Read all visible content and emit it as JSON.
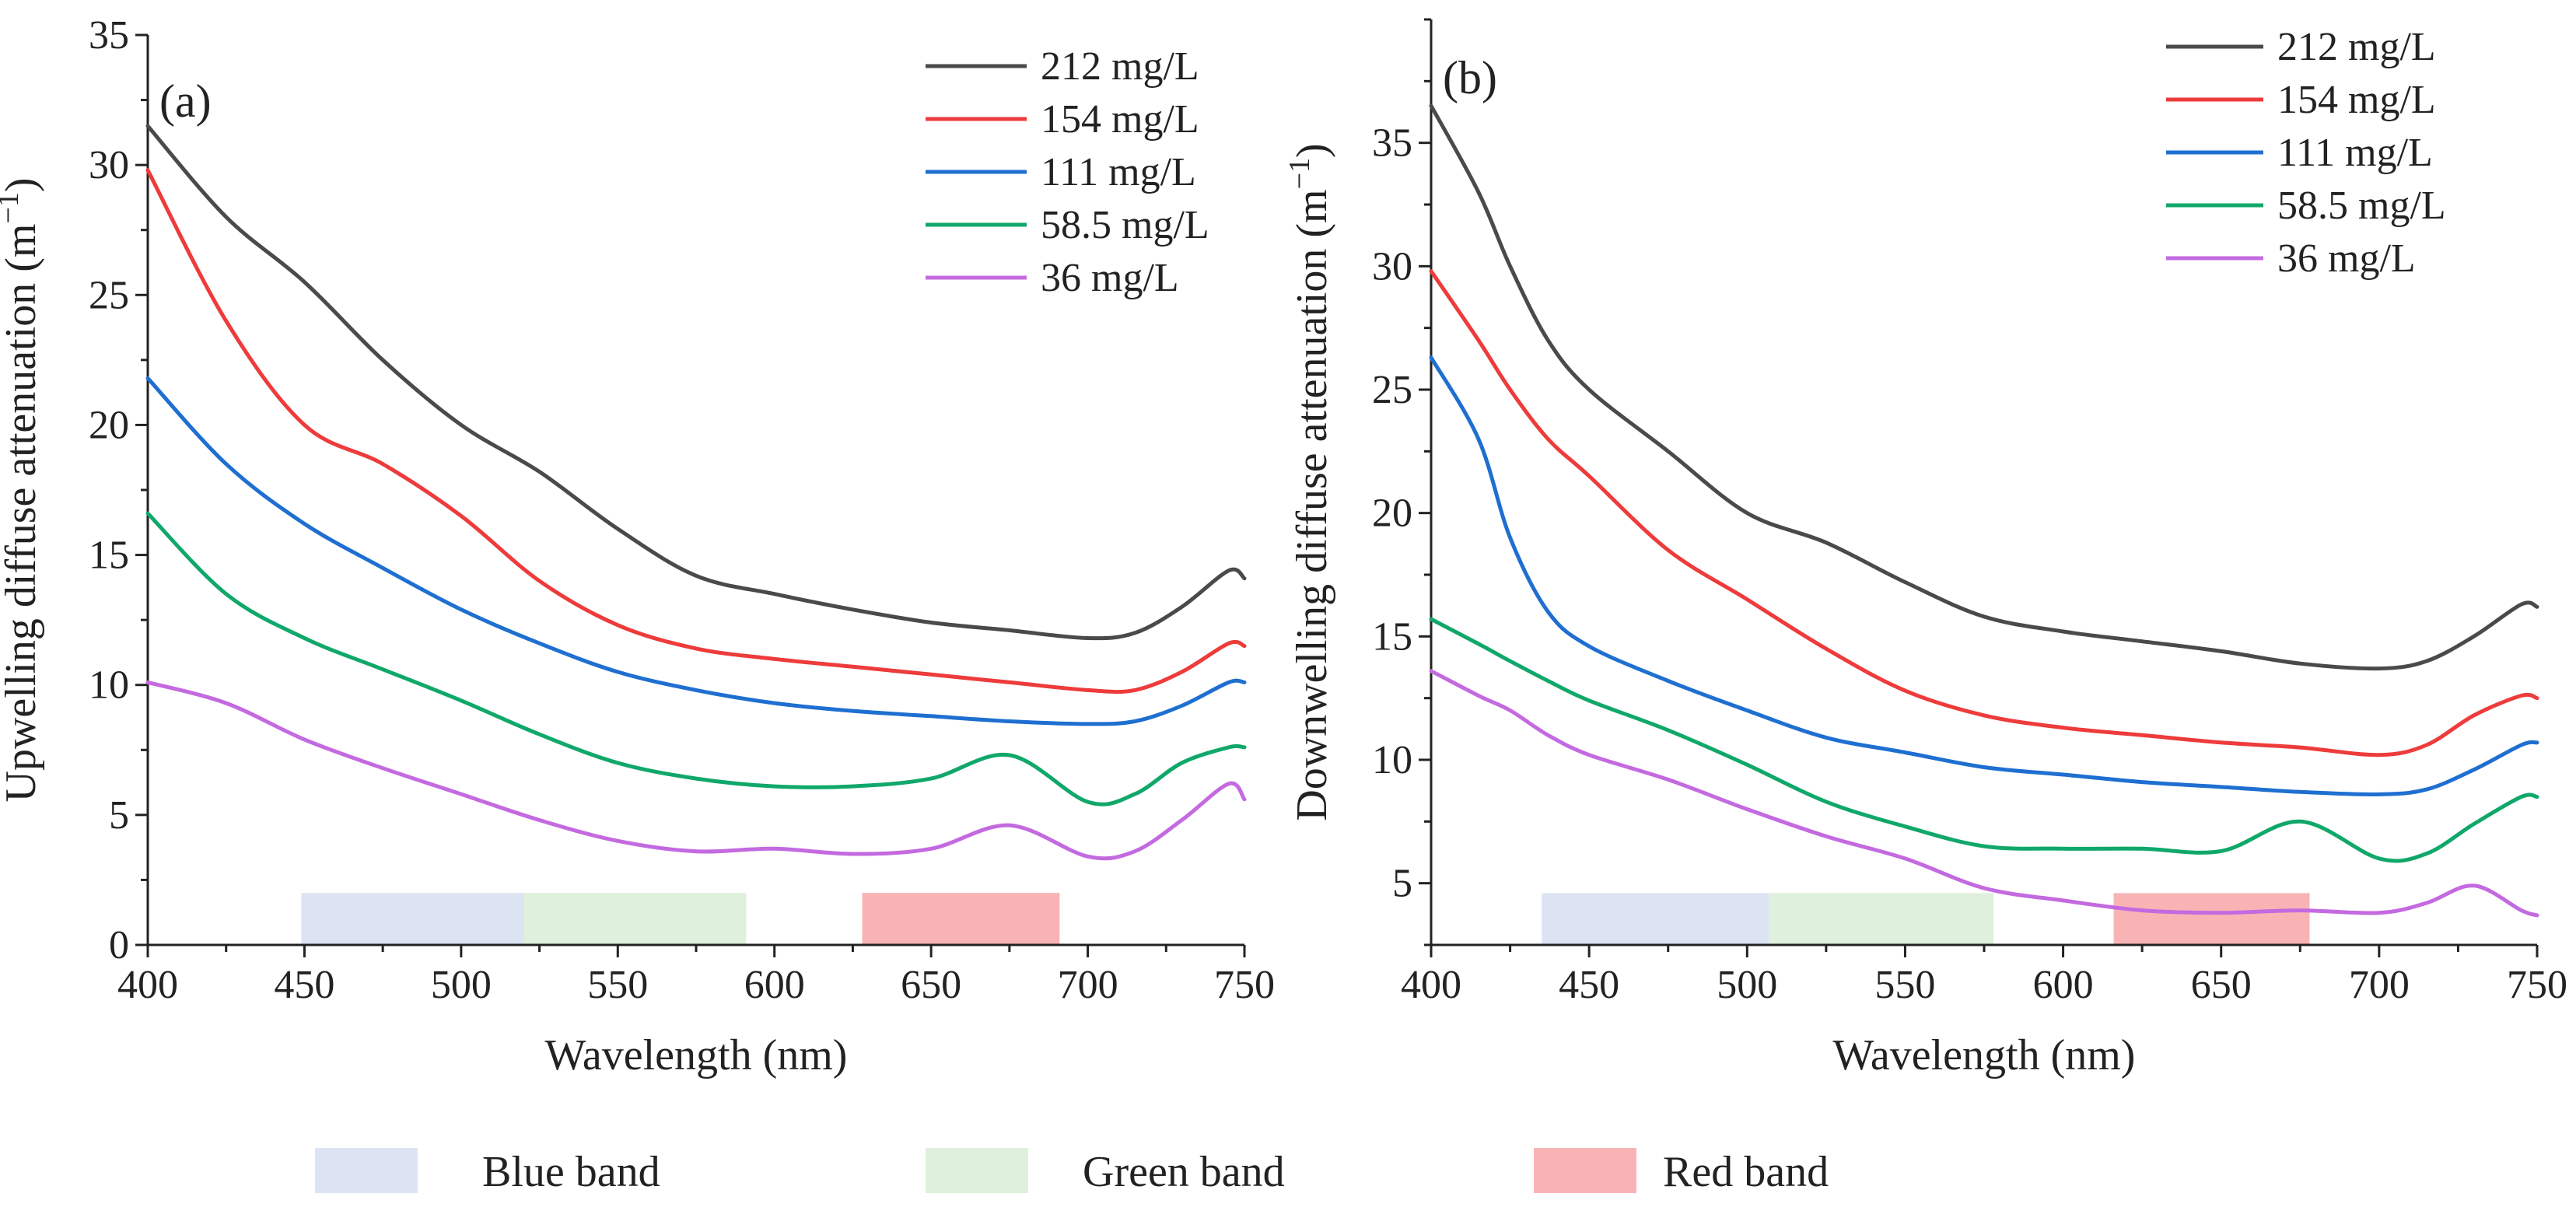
{
  "chart_data": [
    {
      "type": "line",
      "panel_label": "(a)",
      "xlabel": "Wavelength (nm)",
      "ylabel": "Upwelling diffuse attenuation (m",
      "ylabel_sup": "−1",
      "ylabel_close": ")",
      "xlim": [
        400,
        750
      ],
      "ylim": [
        0,
        35
      ],
      "xticks": [
        400,
        450,
        500,
        550,
        600,
        650,
        700,
        750
      ],
      "yticks": [
        0,
        5,
        10,
        15,
        20,
        25,
        30,
        35
      ],
      "x": [
        400,
        425,
        450,
        475,
        500,
        525,
        550,
        575,
        600,
        625,
        650,
        675,
        700,
        715,
        730,
        745,
        750
      ],
      "series": [
        {
          "name": "212 mg/L",
          "color": "#4a4a4a",
          "values": [
            31.5,
            28.0,
            25.5,
            22.5,
            20.0,
            18.2,
            16.0,
            14.2,
            13.5,
            12.9,
            12.4,
            12.1,
            11.8,
            12.0,
            13.0,
            14.4,
            14.1
          ]
        },
        {
          "name": "154 mg/L",
          "color": "#ee3b3b",
          "values": [
            29.8,
            24.0,
            20.0,
            18.5,
            16.5,
            14.0,
            12.3,
            11.4,
            11.0,
            10.7,
            10.4,
            10.1,
            9.8,
            9.8,
            10.5,
            11.6,
            11.5
          ]
        },
        {
          "name": "111 mg/L",
          "color": "#1f6fd1",
          "values": [
            21.8,
            18.5,
            16.2,
            14.5,
            12.9,
            11.6,
            10.5,
            9.8,
            9.3,
            9.0,
            8.8,
            8.6,
            8.5,
            8.6,
            9.2,
            10.1,
            10.1
          ]
        },
        {
          "name": "58.5 mg/L",
          "color": "#10a86a",
          "values": [
            16.6,
            13.5,
            11.8,
            10.6,
            9.4,
            8.1,
            7.0,
            6.4,
            6.1,
            6.1,
            6.4,
            7.3,
            5.5,
            5.8,
            7.0,
            7.6,
            7.6
          ]
        },
        {
          "name": "36 mg/L",
          "color": "#c46ae0",
          "values": [
            10.1,
            9.3,
            7.9,
            6.8,
            5.8,
            4.8,
            4.0,
            3.6,
            3.7,
            3.5,
            3.7,
            4.6,
            3.4,
            3.6,
            4.8,
            6.2,
            5.6
          ]
        }
      ],
      "bands": [
        {
          "name": "Blue band",
          "start": 449,
          "end": 520,
          "ymin": 0,
          "ymax": 2,
          "color": "#dce4f3"
        },
        {
          "name": "Green band",
          "start": 520,
          "end": 591,
          "ymin": 0,
          "ymax": 2,
          "color": "#dff0dc"
        },
        {
          "name": "Red band",
          "start": 628,
          "end": 691,
          "ymin": 0,
          "ymax": 2,
          "color": "#f8b4b4"
        }
      ],
      "legend_position": "top-right"
    },
    {
      "type": "line",
      "panel_label": "(b)",
      "xlabel": "Wavelength (nm)",
      "ylabel": "Downwelling diffuse attenuation (m",
      "ylabel_sup": "−1",
      "ylabel_close": ")",
      "xlim": [
        400,
        750
      ],
      "ylim": [
        2.5,
        40
      ],
      "xticks": [
        400,
        450,
        500,
        550,
        600,
        650,
        700,
        750
      ],
      "yticks": [
        5,
        10,
        15,
        20,
        25,
        30,
        35
      ],
      "x": [
        400,
        415,
        425,
        437,
        450,
        475,
        500,
        525,
        550,
        575,
        600,
        625,
        650,
        675,
        700,
        715,
        730,
        745,
        750
      ],
      "series": [
        {
          "name": "212 mg/L",
          "color": "#4a4a4a",
          "values": [
            36.5,
            33.0,
            30.0,
            27.0,
            25.0,
            22.5,
            20.0,
            18.8,
            17.2,
            15.8,
            15.2,
            14.8,
            14.4,
            13.9,
            13.7,
            14.0,
            15.0,
            16.3,
            16.2
          ]
        },
        {
          "name": "154 mg/L",
          "color": "#ee3b3b",
          "values": [
            29.8,
            27.0,
            25.0,
            23.0,
            21.5,
            18.5,
            16.5,
            14.5,
            12.8,
            11.8,
            11.3,
            11.0,
            10.7,
            10.5,
            10.2,
            10.6,
            11.8,
            12.6,
            12.5
          ]
        },
        {
          "name": "111 mg/L",
          "color": "#1f6fd1",
          "values": [
            26.3,
            23.0,
            19.0,
            16.0,
            14.6,
            13.2,
            12.0,
            10.9,
            10.3,
            9.7,
            9.4,
            9.1,
            8.9,
            8.7,
            8.6,
            8.8,
            9.6,
            10.6,
            10.7
          ]
        },
        {
          "name": "58.5 mg/L",
          "color": "#10a86a",
          "values": [
            15.7,
            14.7,
            14.0,
            13.2,
            12.4,
            11.2,
            9.8,
            8.3,
            7.3,
            6.5,
            6.4,
            6.4,
            6.3,
            7.5,
            6.0,
            6.2,
            7.4,
            8.5,
            8.5
          ]
        },
        {
          "name": "36 mg/L",
          "color": "#c46ae0",
          "values": [
            13.6,
            12.6,
            12.0,
            11.0,
            10.2,
            9.2,
            8.0,
            6.9,
            6.0,
            4.8,
            4.3,
            3.9,
            3.8,
            3.9,
            3.8,
            4.2,
            4.9,
            3.9,
            3.7
          ]
        }
      ],
      "bands": [
        {
          "name": "Blue band",
          "start": 435,
          "end": 507,
          "ymin": 2.5,
          "ymax": 4.6,
          "color": "#dce4f3"
        },
        {
          "name": "Green band",
          "start": 507,
          "end": 578,
          "ymin": 2.5,
          "ymax": 4.6,
          "color": "#dff0dc"
        },
        {
          "name": "Red band",
          "start": 616,
          "end": 678,
          "ymin": 2.5,
          "ymax": 4.6,
          "color": "#f8b4b4"
        }
      ],
      "legend_position": "top-right"
    }
  ],
  "band_legend": [
    {
      "name": "Blue band",
      "color": "#dce4f3"
    },
    {
      "name": "Green band",
      "color": "#dff0dc"
    },
    {
      "name": "Red band",
      "color": "#f8b4b4"
    }
  ]
}
